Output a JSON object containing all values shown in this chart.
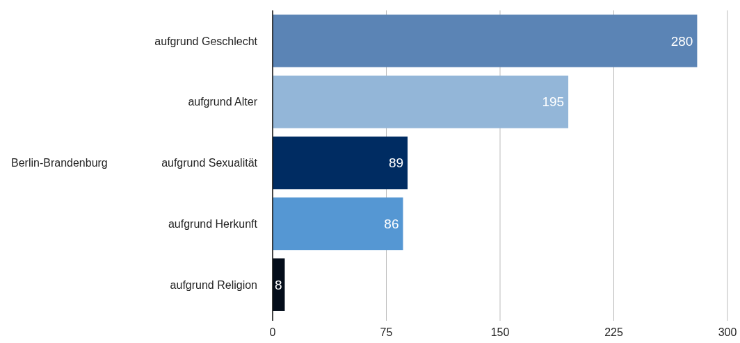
{
  "chart_data": {
    "type": "bar",
    "orientation": "horizontal",
    "ylabel": "Berlin-Brandenburg",
    "categories": [
      "aufgrund Geschlecht",
      "aufgrund Alter",
      "aufgrund Sexualität",
      "aufgrund Herkunft",
      "aufgrund Religion"
    ],
    "values": [
      280,
      195,
      89,
      86,
      8
    ],
    "colors": [
      "#5b84b5",
      "#93b6d8",
      "#002c62",
      "#5597d3",
      "#040d1a"
    ],
    "xlim": [
      0,
      300
    ],
    "xticks": [
      0,
      75,
      150,
      225,
      300
    ],
    "grid": "x",
    "data_labels": true
  }
}
